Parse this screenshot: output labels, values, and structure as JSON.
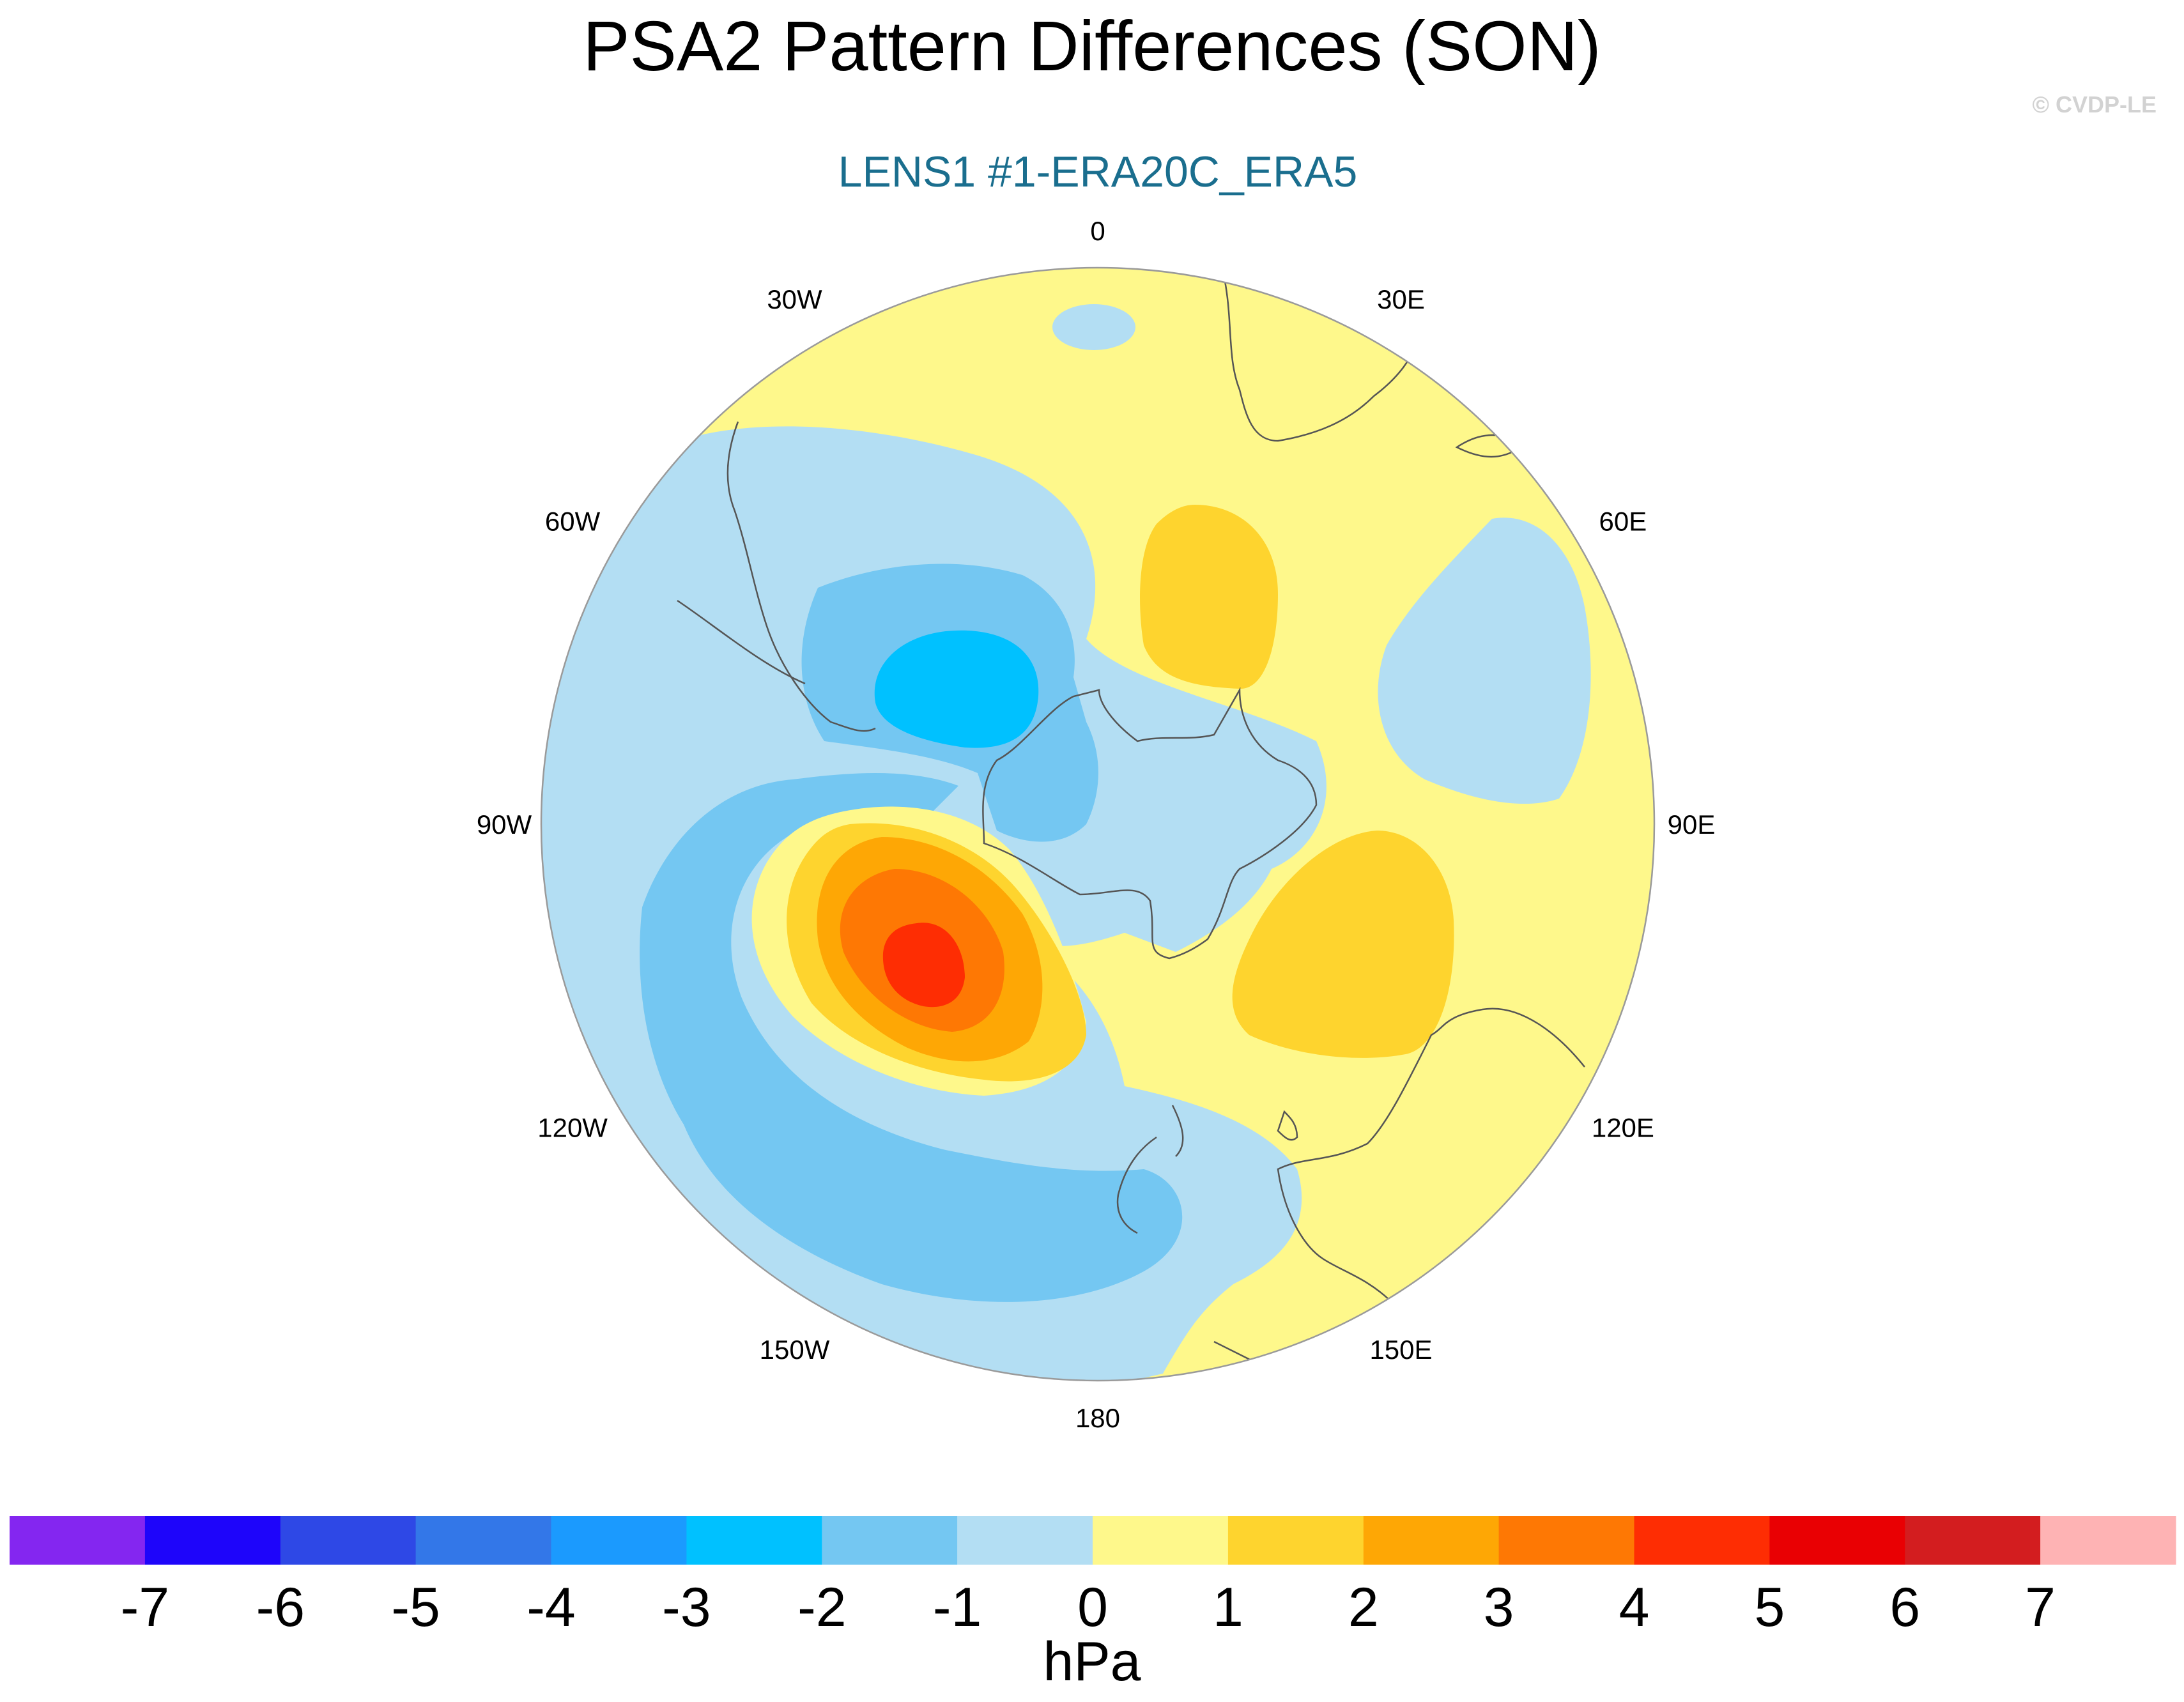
{
  "title": "PSA2 Pattern Differences (SON)",
  "subtitle": "LENS1 #1-ERA20C_ERA5",
  "watermark": "© CVDP-LE",
  "colors": {
    "title": "#000000",
    "subtitle": "#1a6e8e",
    "watermark": "#d2d2d2",
    "ocean_background": "#fef88b",
    "coastline": "#555555",
    "map_border": "#9a9a9a"
  },
  "map": {
    "projection": "polar stereographic (south pole)",
    "longitude_labels": [
      "0",
      "30E",
      "60E",
      "90E",
      "120E",
      "150E",
      "180",
      "150W",
      "120W",
      "90W",
      "60W",
      "30W"
    ]
  },
  "colorbar": {
    "unit_label": "hPa",
    "tick_labels": [
      "-7",
      "-6",
      "-5",
      "-4",
      "-3",
      "-2",
      "-1",
      "0",
      "1",
      "2",
      "3",
      "4",
      "5",
      "6",
      "7"
    ],
    "colors": [
      "#8426f0",
      "#1e05fa",
      "#2e48e6",
      "#3377e8",
      "#1b9afe",
      "#00c1ff",
      "#74c7f2",
      "#b3def3",
      "#fef88b",
      "#fed42e",
      "#fea705",
      "#fe7804",
      "#fe2d03",
      "#e90003",
      "#d31d1f",
      "#feb3b4"
    ]
  },
  "anomalies": [
    {
      "name": "negative center south of South America",
      "peak": "-3"
    },
    {
      "name": "positive center over the Amundsen-Bellingshausen Sea",
      "peak": "4"
    },
    {
      "name": "positive center south of the Atlantic",
      "peak": "1"
    },
    {
      "name": "positive center south of Australia",
      "peak": "1"
    },
    {
      "name": "negative band across the South Pacific",
      "peak": "-2"
    },
    {
      "name": "negative region south of the Indian Ocean",
      "peak": "-1"
    }
  ]
}
